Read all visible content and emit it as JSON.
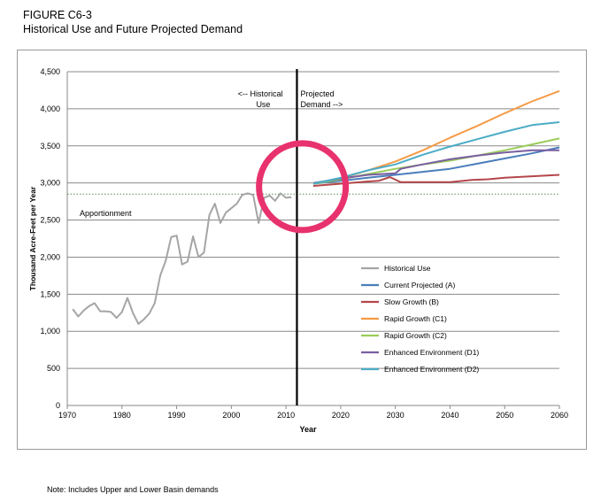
{
  "figure": {
    "label": "FIGURE C6-3",
    "title": "Historical Use and Future Projected Demand",
    "note": "Note: Includes Upper and Lower Basin demands"
  },
  "colors": {
    "grid": "#8a8a8a",
    "divider": "#000000",
    "apportionment": "#5a8a5a",
    "highlight_circle": "#e8326e"
  },
  "chart_data": {
    "type": "line",
    "xlabel": "Year",
    "ylabel": "Thousand Acre-Feet per Year",
    "xlim": [
      1970,
      2060
    ],
    "ylim": [
      0,
      4500
    ],
    "x_ticks": [
      1970,
      1980,
      1990,
      2000,
      2010,
      2020,
      2030,
      2040,
      2050,
      2060
    ],
    "y_ticks": [
      0,
      500,
      1000,
      1500,
      2000,
      2500,
      3000,
      3500,
      4000,
      4500
    ],
    "y_tick_labels": [
      "0",
      "500",
      "1,000",
      "1,500",
      "2,000",
      "2,500",
      "3,000",
      "3,500",
      "4,000",
      "4,500"
    ],
    "grid": "horizontal",
    "legend_position": "bottom-right",
    "divider_year": 2012,
    "annotations": {
      "historical": [
        "<-- Historical",
        "Use"
      ],
      "projected": [
        "Projected",
        "Demand -->"
      ],
      "apportionment": "Apportionment"
    },
    "apportionment_value": 2850,
    "highlight": {
      "x": 2013,
      "y": 2950
    },
    "series": [
      {
        "name": "Historical Use",
        "color": "#a5a5a5",
        "x": [
          1971,
          1972,
          1973,
          1974,
          1975,
          1976,
          1977,
          1978,
          1979,
          1980,
          1981,
          1982,
          1983,
          1984,
          1985,
          1986,
          1987,
          1988,
          1989,
          1990,
          1991,
          1992,
          1993,
          1994,
          1995,
          1996,
          1997,
          1998,
          1999,
          2000,
          2001,
          2002,
          2003,
          2004,
          2005,
          2006,
          2007,
          2008,
          2009,
          2010,
          2011
        ],
        "values": [
          1300,
          1200,
          1280,
          1340,
          1380,
          1270,
          1270,
          1260,
          1180,
          1260,
          1450,
          1250,
          1100,
          1160,
          1240,
          1380,
          1750,
          1950,
          2270,
          2290,
          1900,
          1940,
          2280,
          2000,
          2060,
          2570,
          2720,
          2460,
          2600,
          2660,
          2720,
          2840,
          2860,
          2840,
          2460,
          2800,
          2830,
          2760,
          2860,
          2800,
          2810
        ]
      },
      {
        "name": "Current Projected (A)",
        "color": "#4a7ebb",
        "x": [
          2015,
          2020,
          2025,
          2030,
          2035,
          2040,
          2045,
          2050,
          2055,
          2060
        ],
        "values": [
          2990,
          3030,
          3070,
          3110,
          3150,
          3190,
          3260,
          3330,
          3400,
          3480
        ]
      },
      {
        "name": "Slow Growth (B)",
        "color": "#b4474a",
        "x": [
          2015,
          2020,
          2025,
          2027,
          2029,
          2031,
          2035,
          2040,
          2044,
          2047,
          2050,
          2055,
          2060
        ],
        "values": [
          2960,
          2990,
          3020,
          3030,
          3080,
          3010,
          3010,
          3010,
          3040,
          3050,
          3070,
          3090,
          3110
        ]
      },
      {
        "name": "Rapid Growth (C1)",
        "color": "#f59b45",
        "x": [
          2015,
          2020,
          2025,
          2030,
          2035,
          2040,
          2045,
          2050,
          2055,
          2060
        ],
        "values": [
          2990,
          3060,
          3170,
          3290,
          3440,
          3610,
          3770,
          3940,
          4100,
          4240
        ]
      },
      {
        "name": "Rapid Growth (C2)",
        "color": "#9acd5a",
        "x": [
          2015,
          2020,
          2025,
          2030,
          2035,
          2040,
          2045,
          2050,
          2055,
          2060
        ],
        "values": [
          2990,
          3050,
          3120,
          3190,
          3250,
          3300,
          3370,
          3440,
          3520,
          3600
        ]
      },
      {
        "name": "Enhanced Environment (D1)",
        "color": "#7a5fa0",
        "x": [
          2015,
          2020,
          2025,
          2030,
          2031,
          2035,
          2040,
          2045,
          2050,
          2055,
          2060
        ],
        "values": [
          3000,
          3060,
          3110,
          3130,
          3190,
          3250,
          3320,
          3370,
          3410,
          3440,
          3440
        ]
      },
      {
        "name": "Enhanced Environment (D2)",
        "color": "#4bacc6",
        "x": [
          2015,
          2020,
          2025,
          2030,
          2035,
          2040,
          2045,
          2050,
          2055,
          2060
        ],
        "values": [
          2990,
          3070,
          3170,
          3250,
          3380,
          3490,
          3590,
          3690,
          3780,
          3820
        ]
      }
    ]
  }
}
